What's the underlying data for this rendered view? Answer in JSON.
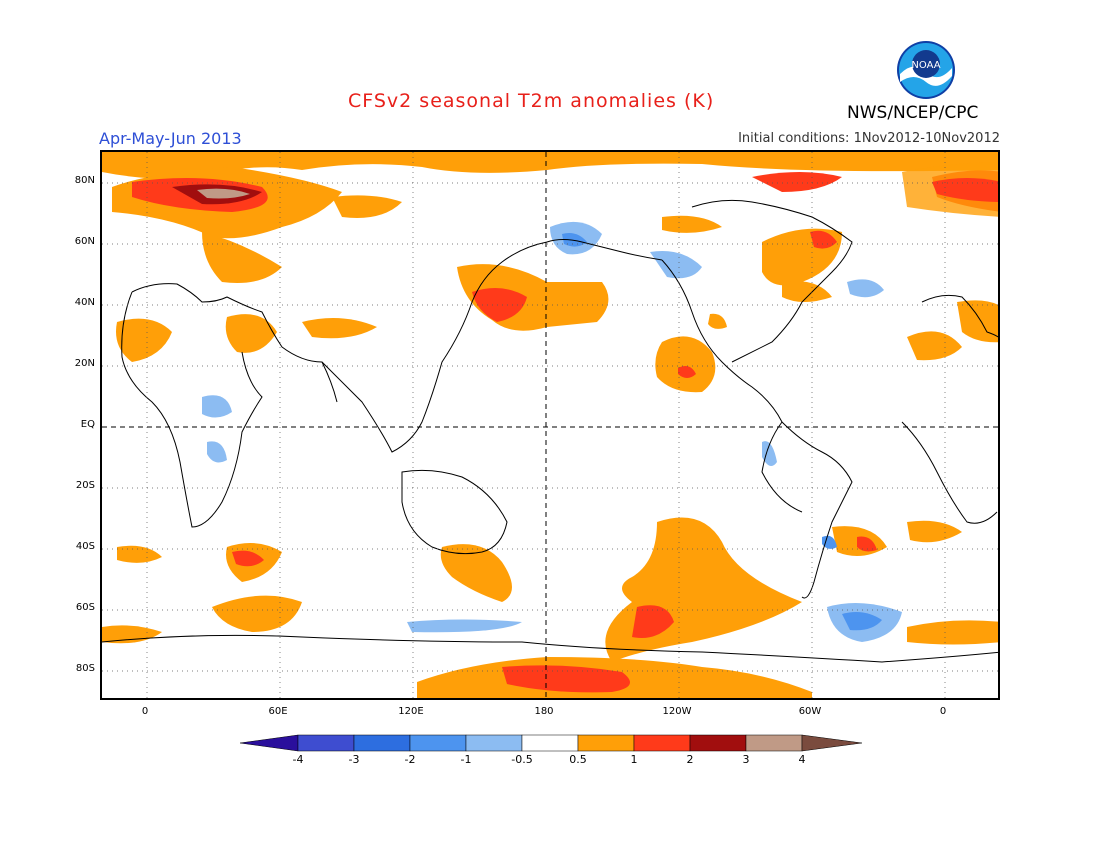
{
  "title": "CFSv2 seasonal T2m anomalies (K)",
  "period": "Apr-May-Jun 2013",
  "initial_conditions": "Initial conditions: 1Nov2012-10Nov2012",
  "agency": "NWS/NCEP/CPC",
  "logo_text": "NOAA",
  "lat_labels": [
    "80N",
    "60N",
    "40N",
    "20N",
    "EQ",
    "20S",
    "40S",
    "60S",
    "80S"
  ],
  "lon_labels": [
    "0",
    "60E",
    "120E",
    "180",
    "120W",
    "60W",
    "0"
  ],
  "colorbar": {
    "labels": [
      "-4",
      "-3",
      "-2",
      "-1",
      "-0.5",
      "0.5",
      "1",
      "2",
      "3",
      "4"
    ],
    "colors": [
      "#2a0f9c",
      "#3e4dd0",
      "#2d6ee0",
      "#4d94ef",
      "#8cbcf2",
      "#ffffff",
      "#ff9f08",
      "#ff3a1a",
      "#a10e0e",
      "#c09a86",
      "#7a4b3e"
    ]
  },
  "anomaly_regions": [
    {
      "region": "Barents/Kara Sea",
      "anomaly_K": 3
    },
    {
      "region": "Arctic Ocean rim",
      "anomaly_K": 1
    },
    {
      "region": "NW Pacific",
      "anomaly_K": 2
    },
    {
      "region": "NE Pacific off Mexico",
      "anomaly_K": 1
    },
    {
      "region": "Alaska",
      "anomaly_K": -1
    },
    {
      "region": "Southern Ocean S of Pacific",
      "anomaly_K": 2
    },
    {
      "region": "Southern Ocean S of Atlantic",
      "anomaly_K": -1
    },
    {
      "region": "Antarctic coast Ross Sea",
      "anomaly_K": 2
    }
  ]
}
